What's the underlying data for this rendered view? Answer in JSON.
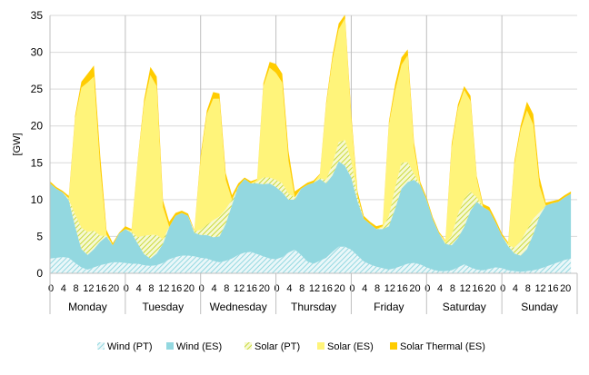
{
  "chart_data": {
    "type": "area",
    "stacked": true,
    "ylabel": "[GW]",
    "ylim": [
      0,
      35
    ],
    "yticks": [
      0,
      5,
      10,
      15,
      20,
      25,
      30,
      35
    ],
    "grid": true,
    "legend_position": "bottom",
    "hour_ticks": [
      "0",
      "4",
      "8",
      "12",
      "16",
      "20"
    ],
    "days": [
      "Monday",
      "Tuesday",
      "Wednesday",
      "Thursday",
      "Friday",
      "Saturday",
      "Sunday"
    ],
    "x_hours": [
      0,
      2,
      4,
      6,
      8,
      10,
      12,
      14,
      16,
      18,
      20,
      22,
      24,
      26,
      28,
      30,
      32,
      34,
      36,
      38,
      40,
      42,
      44,
      46,
      48,
      50,
      52,
      54,
      56,
      58,
      60,
      62,
      64,
      66,
      68,
      70,
      72,
      74,
      76,
      78,
      80,
      82,
      84,
      86,
      88,
      90,
      92,
      94,
      96,
      98,
      100,
      102,
      104,
      106,
      108,
      110,
      112,
      114,
      116,
      118,
      120,
      122,
      124,
      126,
      128,
      130,
      132,
      134,
      136,
      138,
      140,
      142,
      144,
      146,
      148,
      150,
      152,
      154,
      156,
      158,
      160,
      162,
      164,
      166
    ],
    "series": [
      {
        "name": "Wind (PT)",
        "color": "#93D8E0",
        "pattern": "hatch",
        "values": [
          2.0,
          2.1,
          2.2,
          2.1,
          1.4,
          0.8,
          0.5,
          0.8,
          1.1,
          1.3,
          1.5,
          1.5,
          1.4,
          1.3,
          1.3,
          1.1,
          1.0,
          1.1,
          1.4,
          1.9,
          2.2,
          2.4,
          2.4,
          2.3,
          2.1,
          2.0,
          1.7,
          1.5,
          1.7,
          2.0,
          2.5,
          2.8,
          2.9,
          2.6,
          2.3,
          2.0,
          1.9,
          2.2,
          2.8,
          3.2,
          2.5,
          1.6,
          1.3,
          1.7,
          2.1,
          2.9,
          3.6,
          3.6,
          3.2,
          2.4,
          1.6,
          1.2,
          0.9,
          0.7,
          0.5,
          0.7,
          1.0,
          1.3,
          1.4,
          1.2,
          0.8,
          0.5,
          0.3,
          0.3,
          0.4,
          0.8,
          1.2,
          0.8,
          0.5,
          0.4,
          0.6,
          0.8,
          0.7,
          0.4,
          0.3,
          0.2,
          0.3,
          0.4,
          0.6,
          0.9,
          1.2,
          1.5,
          1.8,
          2.0
        ]
      },
      {
        "name": "Wind (ES)",
        "color": "#93D8E0",
        "pattern": "solid",
        "values": [
          10.2,
          9.4,
          8.8,
          7.8,
          5.0,
          2.5,
          2.0,
          2.5,
          3.2,
          3.7,
          2.3,
          3.9,
          4.6,
          4.2,
          2.7,
          1.5,
          1.0,
          1.6,
          2.6,
          4.4,
          5.6,
          5.8,
          5.4,
          3.2,
          3.1,
          3.2,
          3.2,
          3.5,
          5.0,
          7.3,
          9.3,
          10.0,
          9.3,
          9.6,
          9.8,
          10.2,
          9.8,
          8.8,
          7.2,
          6.8,
          9.0,
          10.4,
          11.0,
          11.1,
          10.1,
          10.4,
          11.6,
          11.0,
          9.8,
          7.4,
          5.8,
          5.5,
          5.1,
          5.3,
          5.9,
          8.1,
          10.5,
          11.1,
          11.3,
          10.8,
          9.2,
          6.8,
          5.1,
          3.7,
          3.4,
          4.0,
          5.1,
          7.7,
          9.2,
          8.6,
          7.9,
          6.1,
          4.4,
          3.3,
          2.4,
          2.2,
          3.0,
          4.9,
          7.2,
          8.3,
          8.3,
          8.2,
          8.5,
          8.8
        ]
      },
      {
        "name": "Solar (PT)",
        "color": "#D6E34A",
        "pattern": "hatch",
        "values": [
          0,
          0,
          0,
          0.1,
          1.6,
          2.9,
          3.1,
          2.5,
          0.8,
          0.1,
          0,
          0,
          0,
          0.1,
          0.9,
          2.5,
          3.2,
          2.5,
          0.6,
          0,
          0,
          0,
          0,
          0.2,
          0.7,
          1.4,
          2.3,
          2.7,
          2.0,
          0.7,
          0,
          0,
          0,
          0.2,
          0.9,
          0.8,
          1.0,
          1.2,
          0.8,
          0.3,
          0,
          0,
          0,
          0.1,
          0.5,
          1.5,
          2.6,
          3.5,
          2.3,
          0.7,
          0,
          0,
          0,
          0.2,
          1.4,
          2.8,
          3.5,
          2.7,
          0.8,
          0,
          0,
          0,
          0,
          0.1,
          1.3,
          3.2,
          3.8,
          2.6,
          0.6,
          0,
          0,
          0,
          0,
          0.1,
          0.8,
          2.0,
          2.6,
          2.1,
          0.5,
          0,
          0,
          0,
          0,
          0
        ]
      },
      {
        "name": "Solar (ES)",
        "color": "#FFF47A",
        "pattern": "solid",
        "values": [
          0,
          0,
          0,
          0.2,
          13.0,
          19.0,
          20.3,
          20.9,
          9.1,
          0.2,
          0,
          0,
          0,
          0.2,
          10.5,
          17.9,
          21.7,
          20.2,
          4.4,
          0,
          0,
          0,
          0,
          0.1,
          9.6,
          15.0,
          16.5,
          16.0,
          4.0,
          0,
          0,
          0,
          0,
          0.3,
          12.4,
          14.9,
          14.5,
          13.7,
          4.5,
          0,
          0,
          0,
          0,
          0.5,
          10.1,
          14.1,
          15.3,
          16.5,
          5.7,
          0,
          0,
          0,
          0,
          0.2,
          12.4,
          13.2,
          13.3,
          14.5,
          3.5,
          0,
          0,
          0,
          0,
          0.3,
          11.9,
          14.4,
          14.8,
          12.3,
          2.5,
          0,
          0,
          0,
          0,
          0.2,
          11.3,
          15.1,
          16.2,
          12.8,
          3.5,
          0,
          0,
          0,
          0,
          0
        ]
      },
      {
        "name": "Solar Thermal (ES)",
        "color": "#FFCC00",
        "pattern": "solid",
        "values": [
          0.3,
          0.2,
          0.2,
          0.3,
          0.4,
          0.8,
          1.2,
          1.5,
          1.8,
          0.6,
          0.3,
          0.1,
          0.4,
          0.2,
          0.2,
          0.6,
          1.1,
          1.3,
          0.9,
          0.7,
          0.4,
          0.3,
          0.3,
          0.1,
          0.5,
          0.5,
          0.9,
          0.7,
          0.9,
          0.6,
          0.4,
          0.2,
          0.3,
          0.1,
          0.4,
          0.8,
          1.2,
          1.2,
          1.3,
          0.8,
          0.2,
          0.3,
          0.3,
          0.1,
          0.4,
          0.6,
          0.8,
          0.5,
          0.7,
          0.6,
          0.4,
          0.3,
          0.4,
          0.2,
          0.4,
          0.9,
          1.0,
          0.8,
          0.8,
          0.4,
          0.3,
          0.3,
          0.2,
          0.1,
          0.6,
          0.5,
          0.5,
          0.7,
          0.4,
          0.4,
          0.5,
          0.4,
          0.3,
          0.2,
          0.5,
          0.6,
          1.2,
          1.4,
          1.2,
          0.4,
          0.3,
          0.3,
          0.3,
          0.3
        ]
      }
    ]
  }
}
